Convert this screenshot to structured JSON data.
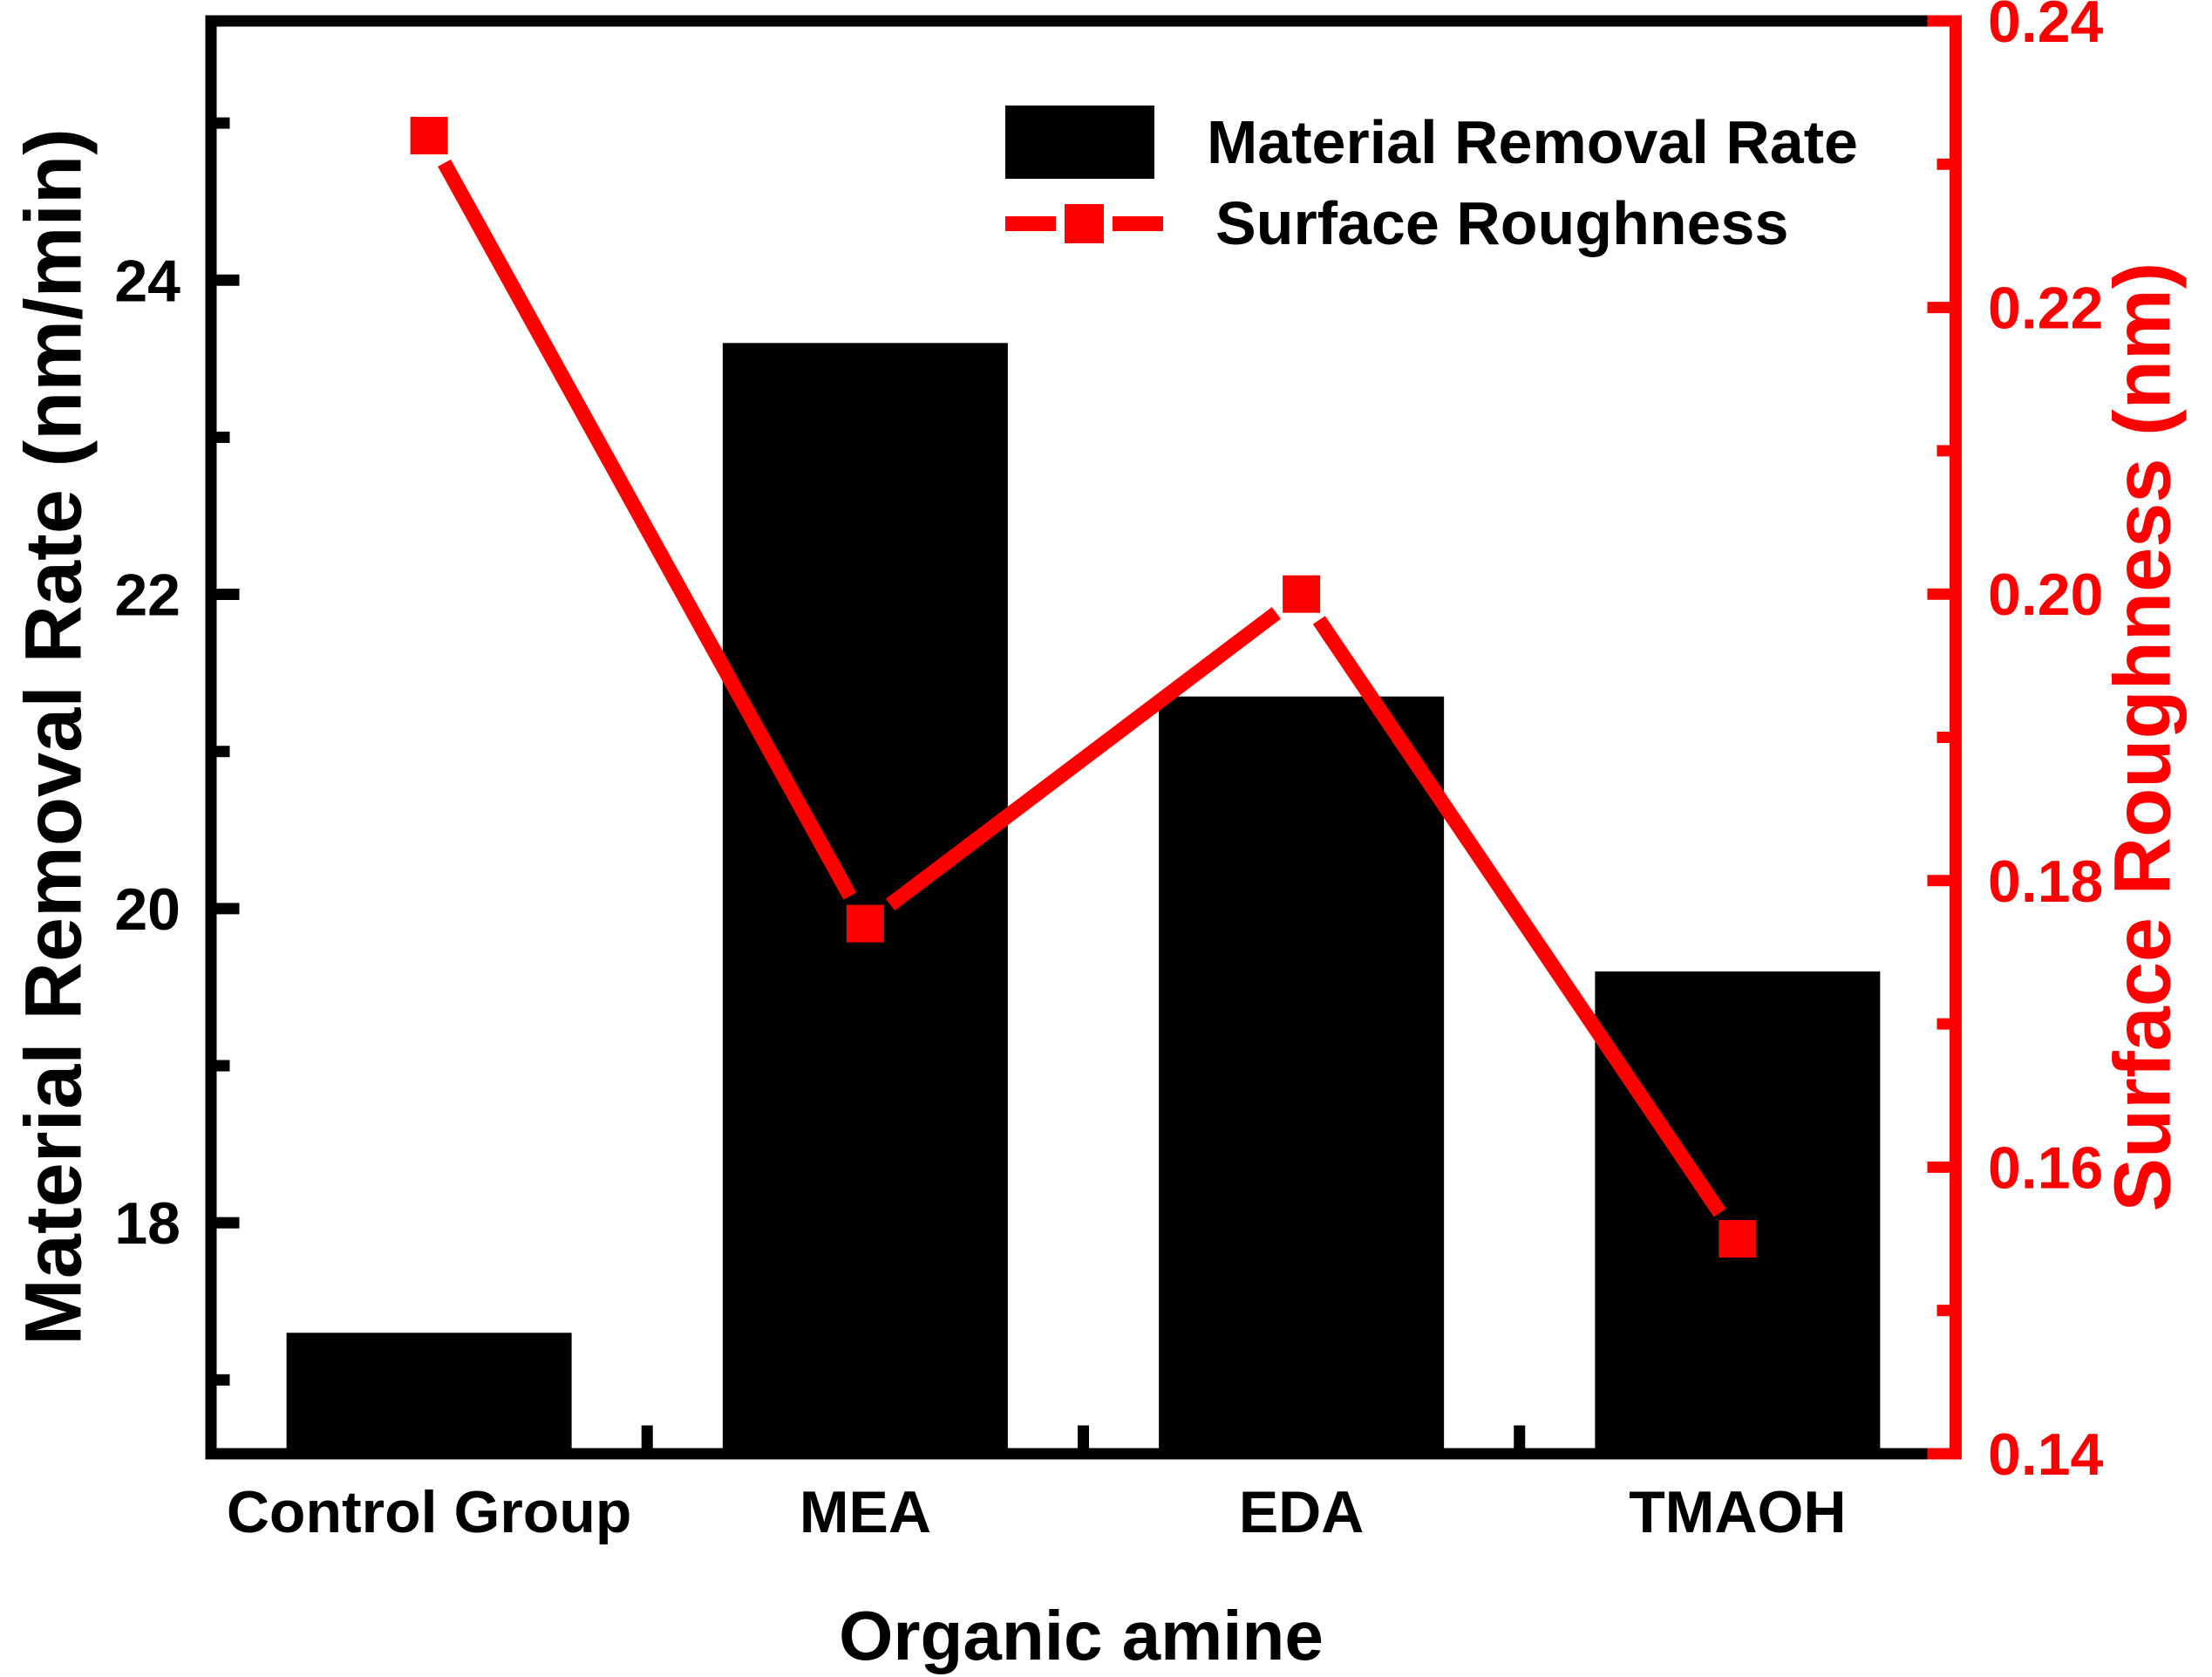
{
  "figure": {
    "background": "#ffffff",
    "bar_color": "#000000",
    "line_color": "#ff0000",
    "legend": {
      "items": [
        {
          "label": "Material Removal Rate",
          "swatch": "black-filled-rect"
        },
        {
          "label": "Surface Roughness",
          "swatch": "red-dashed-line-with-square-marker"
        }
      ]
    }
  },
  "chart_data": {
    "type": "bar",
    "subtype": "dual-axis bar + line with square markers",
    "categories": [
      "Control Group",
      "MEA",
      "EDA",
      "TMAOH"
    ],
    "series": [
      {
        "name": "Material Removal Rate",
        "type": "bar",
        "axis": "left",
        "color": "#000000",
        "values": [
          17.3,
          23.6,
          21.35,
          19.6
        ]
      },
      {
        "name": "Surface Roughness",
        "type": "line",
        "axis": "right",
        "color": "#ff0000",
        "marker": "filled-square",
        "line_style": "solid-segments-with-gap-at-markers",
        "values": [
          0.232,
          0.177,
          0.2,
          0.155
        ]
      }
    ],
    "title": "",
    "xlabel": "Organic amine",
    "left_axis": {
      "label": "Material Removal Rate (nm/min)",
      "color": "#000000",
      "range": [
        16.53,
        25.65
      ],
      "major_ticks": [
        18,
        20,
        22,
        24
      ],
      "major_tick_labels": [
        "18",
        "20",
        "22",
        "24"
      ],
      "minor_ticks": [
        17,
        19,
        21,
        23,
        25
      ]
    },
    "right_axis": {
      "label": "Surface Roughness (nm)",
      "color": "#ff0000",
      "range": [
        0.14,
        0.24
      ],
      "major_ticks": [
        0.14,
        0.16,
        0.18,
        0.2,
        0.22,
        0.24
      ],
      "major_tick_labels": [
        "0.14",
        "0.16",
        "0.18",
        "0.20",
        "0.22",
        "0.24"
      ],
      "minor_ticks": [
        0.15,
        0.17,
        0.19,
        0.21,
        0.23
      ]
    },
    "grid": false,
    "legend_position": "upper right inside plot"
  }
}
